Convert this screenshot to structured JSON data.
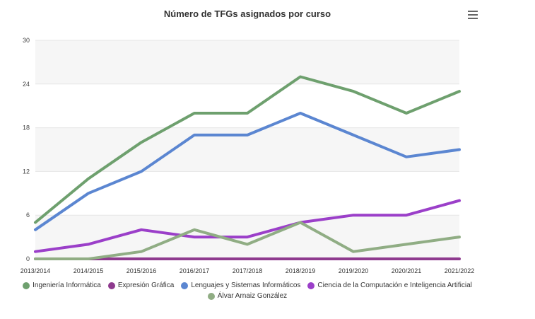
{
  "chart_data": {
    "type": "line",
    "title": "Número de TFGs asignados por curso",
    "x": [
      "2013/2014",
      "2014/2015",
      "2015/2016",
      "2016/2017",
      "2017/2018",
      "2018/2019",
      "2019/2020",
      "2020/2021",
      "2021/2022"
    ],
    "ylim": [
      0,
      30
    ],
    "yticks": [
      0,
      6,
      12,
      18,
      24,
      30
    ],
    "xlabel": "",
    "ylabel": "",
    "grid": true,
    "legend_position": "bottom",
    "series": [
      {
        "name": "Ingeniería Informática",
        "color": "#6ea06e",
        "values": [
          5,
          11,
          16,
          20,
          20,
          25,
          23,
          20,
          23
        ]
      },
      {
        "name": "Expresión Gráfica",
        "color": "#8e3a8e",
        "values": [
          0,
          0,
          0,
          0,
          0,
          0,
          0,
          0,
          0
        ]
      },
      {
        "name": "Lenguajes y Sistemas Informáticos",
        "color": "#5b86d1",
        "values": [
          4,
          9,
          12,
          17,
          17,
          20,
          17,
          14,
          15
        ]
      },
      {
        "name": "Ciencia de la Computación e Inteligencia Artificial",
        "color": "#9b3fc9",
        "values": [
          1,
          2,
          4,
          3,
          3,
          5,
          6,
          6,
          8
        ]
      },
      {
        "name": "Álvar Arnaiz González",
        "color": "#90ad84",
        "values": [
          0,
          0,
          1,
          4,
          2,
          5,
          1,
          2,
          3
        ]
      }
    ]
  },
  "ui": {
    "menu_icon": "hamburger-menu-icon"
  }
}
